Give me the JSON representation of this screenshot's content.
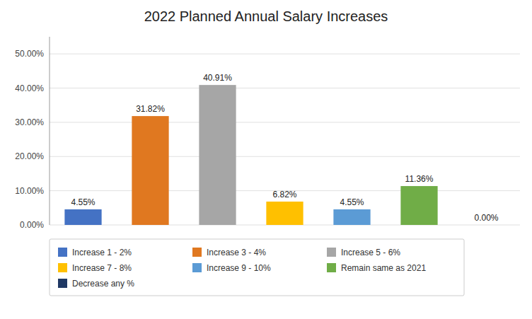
{
  "chart_data": {
    "type": "bar",
    "title": "2022 Planned Annual Salary Increases",
    "categories": [
      "Increase 1 - 2%",
      "Increase 3 - 4%",
      "Increase 5 - 6%",
      "Increase 7 - 8%",
      "Increase 9 - 10%",
      "Remain same as 2021",
      "Decrease any %"
    ],
    "values": [
      4.55,
      31.82,
      40.91,
      6.82,
      4.55,
      11.36,
      0.0
    ],
    "value_labels": [
      "4.55%",
      "31.82%",
      "40.91%",
      "6.82%",
      "4.55%",
      "11.36%",
      "0.00%"
    ],
    "colors": [
      "#4472c4",
      "#e07820",
      "#a6a6a6",
      "#ffc000",
      "#5b9bd5",
      "#70ad47",
      "#1f3864"
    ],
    "ylim": [
      0,
      55
    ],
    "yticks": [
      {
        "value": 0,
        "label": "0.00%"
      },
      {
        "value": 10,
        "label": "10.00%"
      },
      {
        "value": 20,
        "label": "20.00%"
      },
      {
        "value": 30,
        "label": "30.00%"
      },
      {
        "value": 40,
        "label": "40.00%"
      },
      {
        "value": 50,
        "label": "50.00%"
      }
    ],
    "grid": true,
    "data_labels": true,
    "tick_labels": "y",
    "legend": "bottom"
  }
}
